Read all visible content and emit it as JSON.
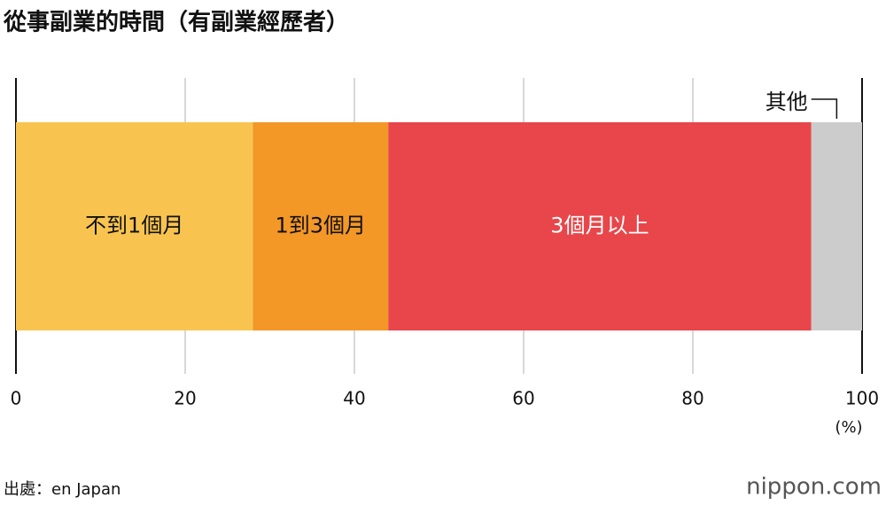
{
  "chart_data": {
    "type": "bar",
    "orientation": "horizontal",
    "stacked": true,
    "title": "從事副業的時間（有副業經歷者）",
    "categories": [
      null
    ],
    "series": [
      {
        "name": "不到1個月",
        "color": "#f8c44f",
        "values": [
          28
        ]
      },
      {
        "name": "1到3個月",
        "color": "#f39727",
        "values": [
          16
        ]
      },
      {
        "name": "3個月以上",
        "color": "#e8464a",
        "values": [
          50
        ]
      },
      {
        "name": "其他",
        "color": "#cccccc",
        "values": [
          6
        ]
      }
    ],
    "xlim": [
      0,
      100
    ],
    "xticks": [
      0,
      20,
      40,
      60,
      80,
      100
    ],
    "xlabel": "(%)",
    "grid": true
  },
  "footer": {
    "source": "出處：en Japan",
    "logo": "nippon.com"
  }
}
